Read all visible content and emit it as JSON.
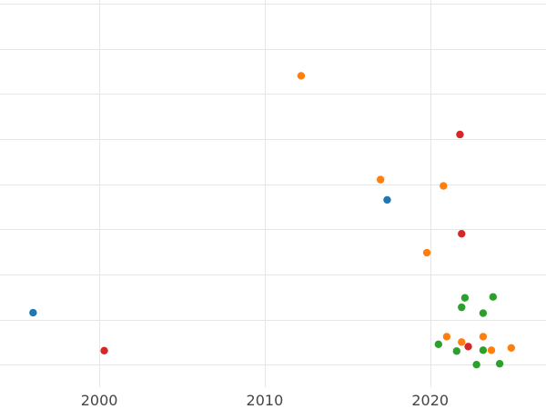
{
  "chart_data": {
    "type": "scatter",
    "xlim": [
      1994,
      2027
    ],
    "ylim": [
      0,
      8.5
    ],
    "x_ticks": [
      2000,
      2010,
      2020
    ],
    "x_tick_labels": [
      "2000",
      "2010",
      "2020"
    ],
    "y_gridlines": [
      0.5,
      1.5,
      2.5,
      3.5,
      4.5,
      5.5,
      6.5,
      7.5,
      8.5
    ],
    "grid": true,
    "legend": "none",
    "series": [
      {
        "color": "#1f77b4",
        "points": [
          {
            "x": 1996.0,
            "y": 1.65
          },
          {
            "x": 2017.4,
            "y": 4.15
          }
        ]
      },
      {
        "color": "#ff7f0e",
        "points": [
          {
            "x": 2012.2,
            "y": 6.9
          },
          {
            "x": 2017.0,
            "y": 4.6
          },
          {
            "x": 2020.8,
            "y": 4.46
          },
          {
            "x": 2019.8,
            "y": 2.98
          },
          {
            "x": 2021.0,
            "y": 1.12
          },
          {
            "x": 2021.9,
            "y": 1.0
          },
          {
            "x": 2023.2,
            "y": 1.12
          },
          {
            "x": 2023.7,
            "y": 0.82
          },
          {
            "x": 2024.9,
            "y": 0.87
          }
        ]
      },
      {
        "color": "#2ca02c",
        "points": [
          {
            "x": 2022.1,
            "y": 1.98
          },
          {
            "x": 2023.8,
            "y": 2.0
          },
          {
            "x": 2021.9,
            "y": 1.77
          },
          {
            "x": 2023.2,
            "y": 1.64
          },
          {
            "x": 2020.5,
            "y": 0.95
          },
          {
            "x": 2021.6,
            "y": 0.8
          },
          {
            "x": 2023.2,
            "y": 0.82
          },
          {
            "x": 2022.8,
            "y": 0.5
          },
          {
            "x": 2024.2,
            "y": 0.52
          }
        ]
      },
      {
        "color": "#d62728",
        "points": [
          {
            "x": 2021.8,
            "y": 5.6
          },
          {
            "x": 2021.9,
            "y": 3.4
          },
          {
            "x": 2000.3,
            "y": 0.81
          },
          {
            "x": 2022.3,
            "y": 0.9
          }
        ]
      }
    ]
  }
}
